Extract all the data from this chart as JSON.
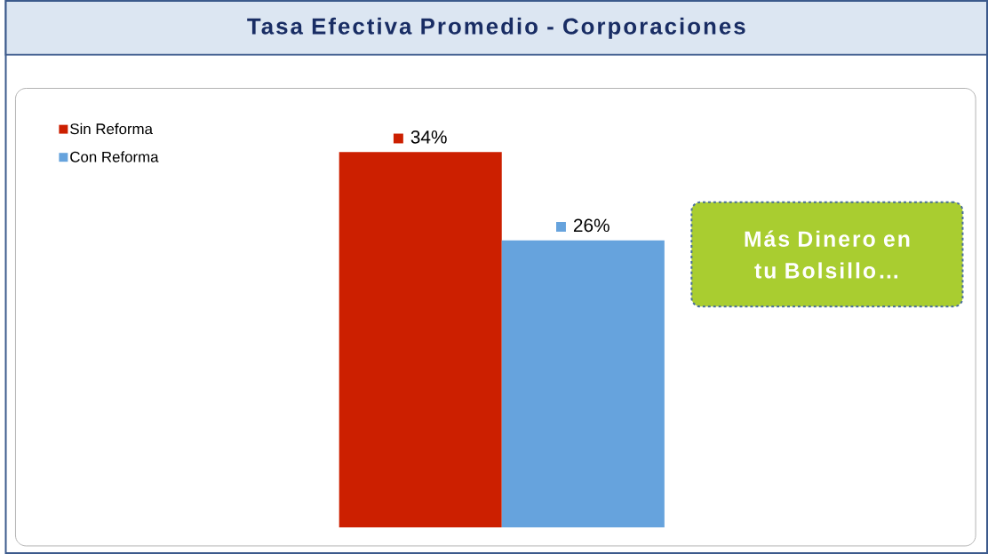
{
  "chart_data": {
    "type": "bar",
    "title": "Tasa Efectiva Promedio - Corporaciones",
    "categories": [
      null
    ],
    "series": [
      {
        "name": "Sin Reforma",
        "color": "#cc1f00",
        "values": [
          34
        ],
        "value_labels": [
          "34%"
        ]
      },
      {
        "name": "Con Reforma",
        "color": "#66a3dd",
        "values": [
          26
        ],
        "value_labels": [
          "26%"
        ]
      }
    ],
    "legend": "top left",
    "annotations": [
      "Más Dinero en tu Bolsillo…"
    ]
  }
}
